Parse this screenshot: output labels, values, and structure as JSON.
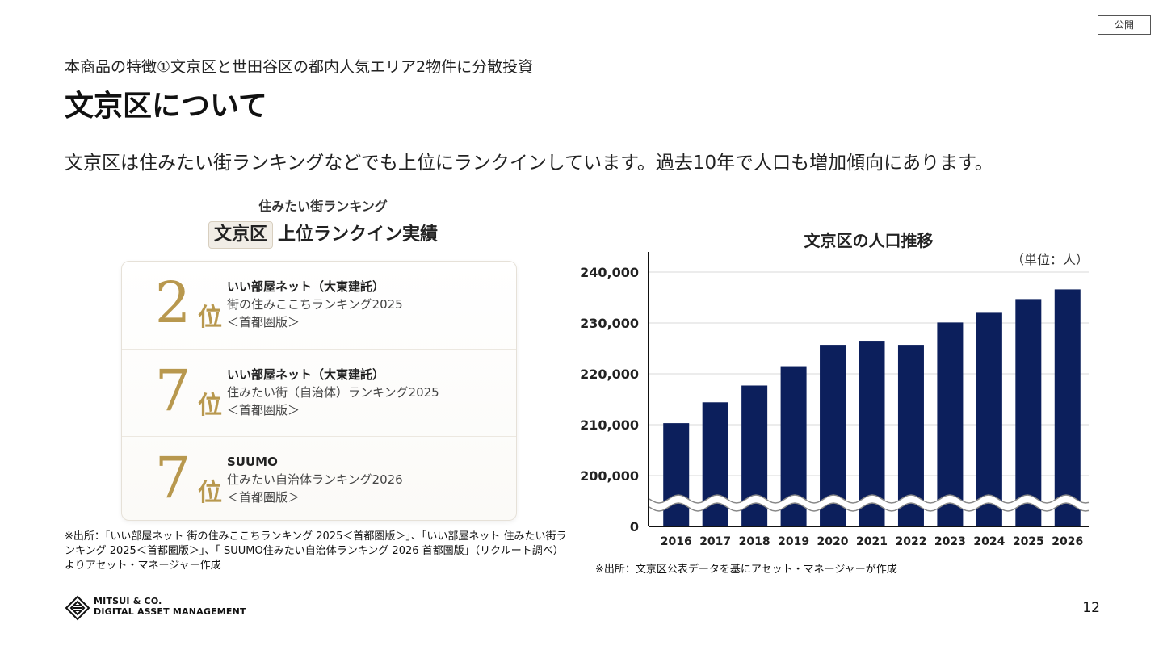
{
  "badge": "公開",
  "header": {
    "subtitle": "本商品の特徴①文京区と世田谷区の都内人気エリア2物件に分散投資",
    "title": "文京区について",
    "lead": "文京区は住みたい街ランキングなどでも上位にランクインしています。過去10年で人口も増加傾向にあります。"
  },
  "ranking": {
    "caption": "住みたい街ランキング",
    "heading_boxed": "文京区",
    "heading_rest": "上位ランクイン実績",
    "items": [
      {
        "rank": "2",
        "suffix": "位",
        "source": "いい部屋ネット（大東建託）",
        "line2": "街の住みここちランキング2025",
        "line3": "＜首都圏版＞"
      },
      {
        "rank": "7",
        "suffix": "位",
        "source": "いい部屋ネット（大東建託）",
        "line2": "住みたい街（自治体）ランキング2025",
        "line3": "＜首都圏版＞"
      },
      {
        "rank": "7",
        "suffix": "位",
        "source": "SUUMO",
        "line2": "住みたい自治体ランキング2026",
        "line3": "＜首都圏版＞"
      }
    ],
    "note": "※出所：「いい部屋ネット 街の住みここちランキング 2025＜首都圏版＞」、「いい部屋ネット 住みたい街ランキング 2025＜首都圏版＞」、「 SUUMO住みたい自治体ランキング 2026 首都圏版」（リクルート調べ）よりアセット・マネージャー作成"
  },
  "chart_data": {
    "type": "bar",
    "title": "文京区の人口推移",
    "unit_label": "（単位：人）",
    "categories": [
      "2016",
      "2017",
      "2018",
      "2019",
      "2020",
      "2021",
      "2022",
      "2023",
      "2024",
      "2025",
      "2026"
    ],
    "values": [
      210300,
      214400,
      217700,
      221500,
      225700,
      226500,
      225700,
      230100,
      232000,
      234700,
      236600
    ],
    "y_ticks": [
      "240,000",
      "230,000",
      "220,000",
      "210,000",
      "200,000",
      "0"
    ],
    "ylim": [
      200000,
      240000
    ],
    "axis_break": true,
    "grid": true,
    "bar_color": "#0c1f5c",
    "source_note": "※出所：文京区公表データを基にアセット・マネージャーが作成"
  },
  "footer": {
    "logo_line1": "MITSUI & CO.",
    "logo_line2": "DIGITAL ASSET MANAGEMENT",
    "page_number": "12"
  }
}
